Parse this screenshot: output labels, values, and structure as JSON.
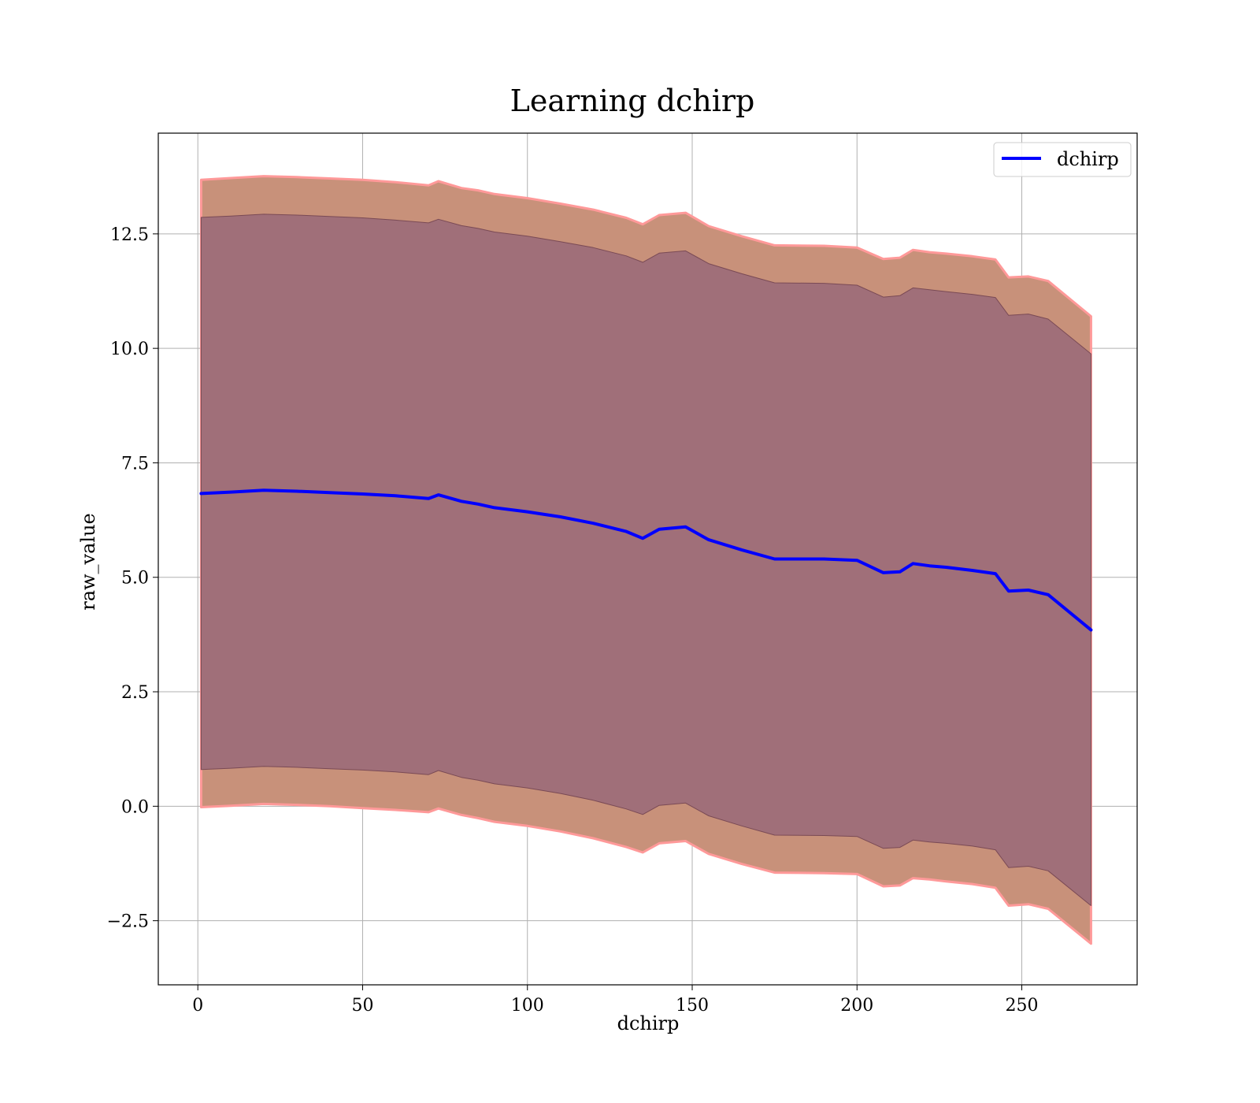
{
  "chart_data": {
    "type": "line",
    "title": "Learning dchirp",
    "xlabel": "dchirp",
    "ylabel": "raw_value",
    "xlim": [
      -12,
      285
    ],
    "ylim": [
      -3.9,
      14.7
    ],
    "xticks": [
      0,
      50,
      100,
      150,
      200,
      250
    ],
    "xtick_labels": [
      "0",
      "50",
      "100",
      "150",
      "200",
      "250"
    ],
    "yticks": [
      -2.5,
      0.0,
      2.5,
      5.0,
      7.5,
      10.0,
      12.5
    ],
    "ytick_labels": [
      "−2.5",
      "0.0",
      "2.5",
      "5.0",
      "7.5",
      "10.0",
      "12.5"
    ],
    "grid": true,
    "legend_position": "top-right",
    "x": [
      1,
      10,
      20,
      30,
      40,
      50,
      60,
      70,
      73,
      80,
      85,
      90,
      100,
      110,
      120,
      130,
      135,
      140,
      148,
      155,
      165,
      175,
      190,
      200,
      208,
      213,
      217,
      222,
      227,
      235,
      242,
      246,
      252,
      258,
      271
    ],
    "series": [
      {
        "name": "dchirp",
        "color": "#0000ff",
        "values": [
          6.83,
          6.86,
          6.9,
          6.88,
          6.85,
          6.82,
          6.78,
          6.72,
          6.8,
          6.66,
          6.6,
          6.52,
          6.43,
          6.32,
          6.18,
          6.0,
          5.85,
          6.05,
          6.1,
          5.82,
          5.6,
          5.4,
          5.4,
          5.37,
          5.1,
          5.12,
          5.3,
          5.25,
          5.22,
          5.15,
          5.08,
          4.7,
          4.72,
          4.62,
          3.85
        ]
      }
    ],
    "bands": [
      {
        "role": "outer",
        "fill": "#c8917a",
        "edge": "#ff9999",
        "upper": [
          13.68,
          13.72,
          13.76,
          13.74,
          13.71,
          13.68,
          13.63,
          13.56,
          13.65,
          13.5,
          13.45,
          13.37,
          13.28,
          13.16,
          13.03,
          12.85,
          12.71,
          12.91,
          12.96,
          12.67,
          12.45,
          12.25,
          12.24,
          12.2,
          11.95,
          11.98,
          12.15,
          12.1,
          12.07,
          12.01,
          11.94,
          11.55,
          11.57,
          11.47,
          10.7
        ],
        "lower": [
          -0.02,
          0.01,
          0.05,
          0.03,
          0.0,
          -0.04,
          -0.08,
          -0.13,
          -0.05,
          -0.19,
          -0.26,
          -0.34,
          -0.43,
          -0.55,
          -0.7,
          -0.89,
          -1.01,
          -0.81,
          -0.76,
          -1.04,
          -1.26,
          -1.45,
          -1.46,
          -1.48,
          -1.75,
          -1.73,
          -1.57,
          -1.6,
          -1.64,
          -1.7,
          -1.78,
          -2.17,
          -2.14,
          -2.24,
          -3.0
        ]
      },
      {
        "role": "inner",
        "fill": "#a06f79",
        "edge": "#7a4a55",
        "upper": [
          12.86,
          12.89,
          12.93,
          12.91,
          12.88,
          12.85,
          12.8,
          12.74,
          12.82,
          12.68,
          12.62,
          12.54,
          12.45,
          12.33,
          12.2,
          12.02,
          11.88,
          12.08,
          12.13,
          11.85,
          11.63,
          11.43,
          11.42,
          11.38,
          11.12,
          11.15,
          11.32,
          11.28,
          11.24,
          11.18,
          11.11,
          10.72,
          10.75,
          10.64,
          9.88
        ],
        "lower": [
          0.8,
          0.83,
          0.87,
          0.85,
          0.82,
          0.79,
          0.75,
          0.69,
          0.78,
          0.63,
          0.57,
          0.49,
          0.4,
          0.28,
          0.13,
          -0.06,
          -0.18,
          0.02,
          0.07,
          -0.21,
          -0.43,
          -0.63,
          -0.64,
          -0.66,
          -0.92,
          -0.9,
          -0.74,
          -0.78,
          -0.81,
          -0.87,
          -0.95,
          -1.34,
          -1.31,
          -1.41,
          -2.17
        ]
      }
    ]
  }
}
